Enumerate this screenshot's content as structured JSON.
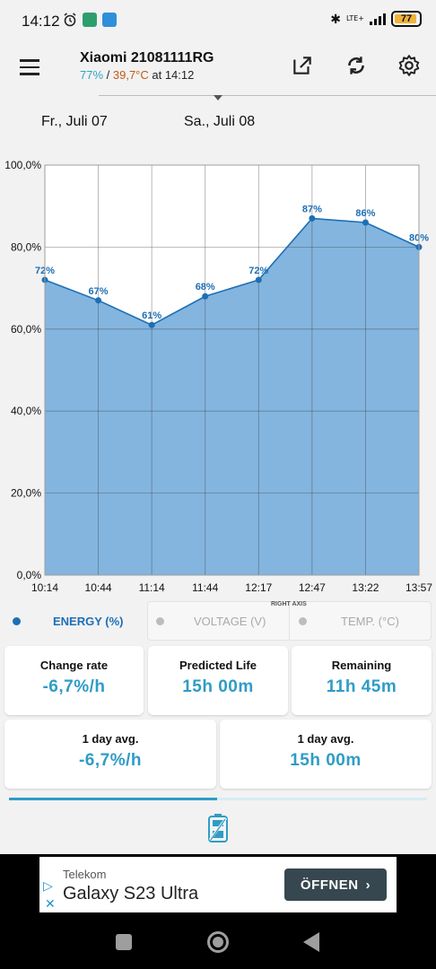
{
  "status": {
    "time": "14:12",
    "network": "LTE+",
    "battery_level": "77"
  },
  "header": {
    "device_name": "Xiaomi 21081111RG",
    "battery_percent": "77%",
    "separator": " / ",
    "temperature": "39,7°C",
    "time_text": " at 14:12"
  },
  "dates": {
    "left": "Fr., Juli 07",
    "right": "Sa., Juli 08"
  },
  "chart_data": {
    "type": "area",
    "x": [
      "10:14",
      "10:44",
      "11:14",
      "11:44",
      "12:17",
      "12:47",
      "13:22",
      "13:57"
    ],
    "values": [
      72,
      67,
      61,
      68,
      72,
      87,
      86,
      80
    ],
    "value_labels": [
      "72%",
      "67%",
      "61%",
      "68%",
      "72%",
      "87%",
      "86%",
      "80%"
    ],
    "y_ticks": [
      "100,0%",
      "80,0%",
      "60,0%",
      "40,0%",
      "20,0%",
      "0,0%"
    ],
    "ylim": [
      0,
      100
    ],
    "grid": true,
    "series": [
      {
        "name": "ENERGY (%)",
        "values": [
          72,
          67,
          61,
          68,
          72,
          87,
          86,
          80
        ]
      }
    ],
    "fill_color": "#83b5df",
    "line_color": "#1d6fb5"
  },
  "legend": {
    "energy": "ENERGY (%)",
    "voltage": "VOLTAGE (V)",
    "temp": "TEMP. (°C)",
    "right_axis": "RIGHT AXIS"
  },
  "stats": {
    "change_rate_label": "Change rate",
    "change_rate_value": "-6,7%/h",
    "predicted_life_label": "Predicted Life",
    "predicted_life_value": "15h 00m",
    "remaining_label": "Remaining",
    "remaining_value": "11h 45m",
    "avg1_label": "1 day avg.",
    "avg1_value": "-6,7%/h",
    "avg2_label": "1 day avg.",
    "avg2_value": "15h 00m"
  },
  "ad": {
    "brand": "Telekom",
    "title": "Galaxy S23 Ultra",
    "button_label": "ÖFFNEN"
  },
  "colors": {
    "accent": "#2f9cc6",
    "temperature": "#c05a13",
    "battery_fill": "#f0b23a"
  },
  "icons": [
    "menu-icon",
    "open-external-icon",
    "refresh-icon",
    "settings-icon",
    "battery-charging-icon",
    "bluetooth-icon",
    "alarm-icon"
  ]
}
